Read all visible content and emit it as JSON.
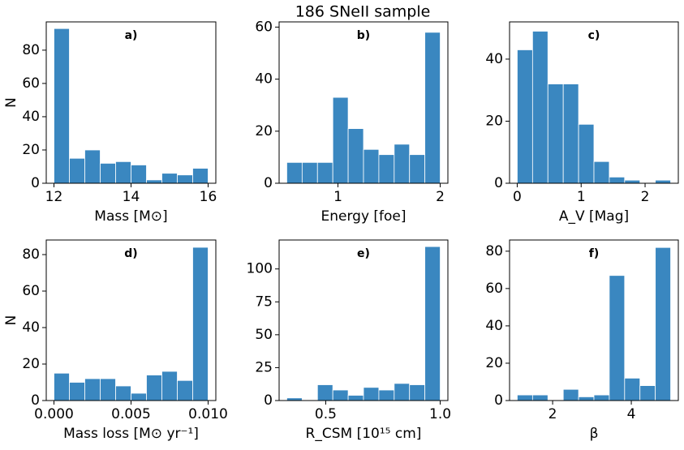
{
  "title": "186 SNeII sample",
  "chart_data": [
    {
      "type": "histogram",
      "annotation": "a)",
      "xlabel": "Mass [M⊙]",
      "ylabel": "N",
      "color": "#3a87c0",
      "bins": [
        12,
        12.4,
        12.8,
        13.2,
        13.6,
        14,
        14.4,
        14.8,
        15.2,
        15.6,
        16
      ],
      "counts": [
        93,
        15,
        20,
        12,
        13,
        11,
        2,
        6,
        5,
        9
      ],
      "xlim": [
        11.8,
        16.2
      ],
      "ylim": [
        0,
        97
      ],
      "xticks": [
        12,
        14,
        16
      ],
      "yticks": [
        0,
        20,
        40,
        60,
        80
      ]
    },
    {
      "type": "histogram",
      "annotation": "b)",
      "xlabel": "Energy [foe]",
      "color": "#3a87c0",
      "bins": [
        0.5,
        0.65,
        0.8,
        0.95,
        1.1,
        1.25,
        1.4,
        1.55,
        1.7,
        1.85,
        2.0
      ],
      "counts": [
        8,
        8,
        8,
        33,
        21,
        13,
        11,
        15,
        11,
        58
      ],
      "xlim": [
        0.425,
        2.075
      ],
      "ylim": [
        0,
        62
      ],
      "xticks": [
        1,
        2
      ],
      "yticks": [
        0,
        20,
        40,
        60
      ]
    },
    {
      "type": "histogram",
      "annotation": "c)",
      "xlabel": "A_V [Mag]",
      "color": "#3a87c0",
      "bins": [
        0,
        0.24,
        0.48,
        0.72,
        0.96,
        1.2,
        1.44,
        1.68,
        1.92,
        2.16,
        2.4
      ],
      "counts": [
        43,
        49,
        32,
        32,
        19,
        7,
        2,
        1,
        0,
        1
      ],
      "xlim": [
        -0.12,
        2.52
      ],
      "ylim": [
        0,
        52
      ],
      "xticks": [
        0,
        1,
        2
      ],
      "yticks": [
        0,
        20,
        40
      ]
    },
    {
      "type": "histogram",
      "annotation": "d)",
      "xlabel": "Mass loss [M⊙ yr⁻¹]",
      "ylabel": "N",
      "color": "#3a87c0",
      "bins": [
        0,
        0.001,
        0.002,
        0.003,
        0.004,
        0.005,
        0.006,
        0.007,
        0.008,
        0.009,
        0.01
      ],
      "counts": [
        15,
        10,
        12,
        12,
        8,
        4,
        14,
        16,
        11,
        84
      ],
      "xlim": [
        -0.0005,
        0.0105
      ],
      "ylim": [
        0,
        88
      ],
      "xticks": [
        {
          "value": 0,
          "label": "0.000"
        },
        {
          "value": 0.005,
          "label": "0.005"
        },
        {
          "value": 0.01,
          "label": "0.010"
        }
      ],
      "yticks": [
        0,
        20,
        40,
        60,
        80
      ]
    },
    {
      "type": "histogram",
      "annotation": "e)",
      "xlabel": "R_CSM [10¹⁵ cm]",
      "color": "#3a87c0",
      "bins": [
        0.33,
        0.397,
        0.464,
        0.531,
        0.598,
        0.665,
        0.732,
        0.799,
        0.866,
        0.933,
        1.0
      ],
      "counts": [
        2,
        0,
        12,
        8,
        4,
        10,
        8,
        13,
        12,
        117
      ],
      "xlim": [
        0.2965,
        1.0335
      ],
      "ylim": [
        0,
        122
      ],
      "xticks": [
        0.5,
        {
          "value": 1,
          "label": "1.0"
        }
      ],
      "yticks": [
        0,
        25,
        50,
        75,
        100
      ]
    },
    {
      "type": "histogram",
      "annotation": "f)",
      "xlabel": "β",
      "color": "#3a87c0",
      "bins": [
        1.1,
        1.49,
        1.88,
        2.27,
        2.66,
        3.05,
        3.44,
        3.83,
        4.22,
        4.61,
        5.0
      ],
      "counts": [
        3,
        3,
        0,
        6,
        2,
        3,
        67,
        12,
        8,
        82
      ],
      "xlim": [
        0.905,
        5.195
      ],
      "ylim": [
        0,
        86
      ],
      "xticks": [
        2,
        4
      ],
      "yticks": [
        0,
        20,
        40,
        60,
        80
      ]
    }
  ]
}
